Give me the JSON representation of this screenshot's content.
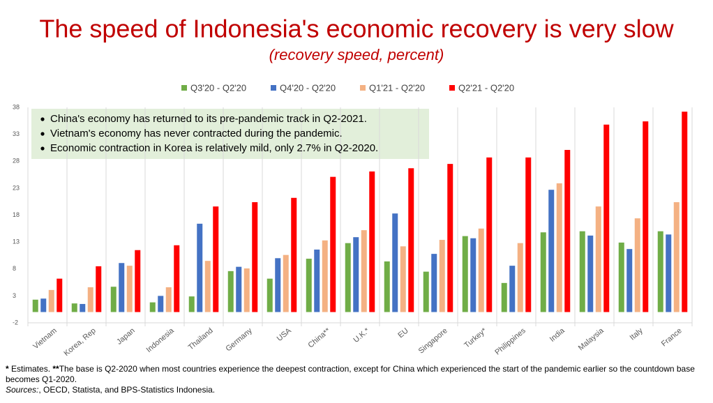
{
  "chart_data": {
    "type": "bar",
    "title": "The speed of Indonesia's economic recovery is very slow",
    "subtitle": "(recovery speed, percent)",
    "categories": [
      "Vietnam",
      "Korea, Rep",
      "Japan",
      "Indonesia",
      "Thailand",
      "Germany",
      "USA",
      "China**",
      "U.K.*",
      "EU",
      "Singapore",
      "Turkey*",
      "Philippines",
      "India",
      "Malaysia",
      "Italy",
      "France"
    ],
    "series": [
      {
        "name": "Q3'20 - Q2'20",
        "color": "#70ad47",
        "values": [
          2.3,
          1.6,
          4.7,
          1.8,
          2.9,
          7.6,
          6.2,
          9.9,
          12.8,
          9.4,
          7.5,
          14.1,
          5.4,
          14.8,
          15.0,
          12.9,
          15.0
        ]
      },
      {
        "name": "Q4'20 - Q2'20",
        "color": "#4472c4",
        "values": [
          2.5,
          1.5,
          9.1,
          3.0,
          16.4,
          8.4,
          10.0,
          11.6,
          13.9,
          18.3,
          10.8,
          13.7,
          8.6,
          22.7,
          14.2,
          11.7,
          14.4
        ]
      },
      {
        "name": "Q1'21 - Q2'20",
        "color": "#f4b183",
        "values": [
          4.1,
          4.6,
          8.6,
          4.6,
          9.5,
          8.1,
          10.6,
          13.3,
          15.2,
          12.2,
          13.4,
          15.5,
          12.8,
          23.9,
          19.6,
          17.4,
          20.4
        ]
      },
      {
        "name": "Q2'21 - Q2'20",
        "color": "#ff0000",
        "values": [
          6.2,
          8.5,
          11.5,
          12.4,
          19.6,
          20.4,
          21.2,
          25.1,
          26.1,
          26.7,
          27.5,
          28.7,
          28.7,
          30.1,
          34.8,
          35.4,
          37.2
        ]
      }
    ],
    "ylim": [
      -2,
      38
    ],
    "yticks": [
      -2,
      3,
      8,
      13,
      18,
      23,
      28,
      33,
      38
    ],
    "grid": "x",
    "legend": "top",
    "annotations": [
      "China's economy has returned to its pre-pandemic track in Q2-2021.",
      "Vietnam's economy has never contracted during the pandemic.",
      "Economic contraction in Korea is relatively mild, only 2.7% in Q2-2020."
    ],
    "footnote": [
      "*",
      " Estimates.  ",
      "**",
      "The base is Q2-2020 when most countries experience the deepest contraction, except for China which experienced the start of the pandemic earlier so the countdown base becomes Q1-2020."
    ],
    "sources": [
      "Sources:",
      ", OECD, Statista, and BPS-Statistics Indonesia."
    ]
  }
}
